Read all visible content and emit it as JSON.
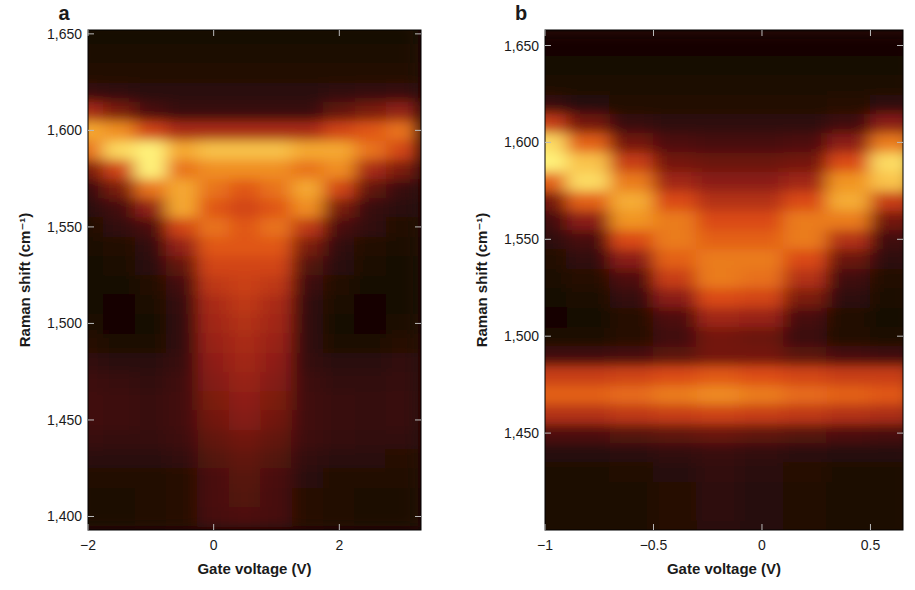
{
  "chart_data": [
    {
      "type": "heatmap",
      "panel_label": "a",
      "x_label": "Gate voltage (V)",
      "y_label": "Raman shift (cm⁻¹)",
      "xlim": [
        -2,
        3.3
      ],
      "ylim": [
        1393,
        1652
      ],
      "xticks": [
        {
          "value": -2,
          "label": "−2"
        },
        0,
        2
      ],
      "yticks": [
        {
          "value": 1400,
          "label": "1,400"
        },
        {
          "value": 1450,
          "label": "1,450"
        },
        {
          "value": 1500,
          "label": "1,500"
        },
        {
          "value": 1550,
          "label": "1,550"
        },
        {
          "value": 1600,
          "label": "1,600"
        },
        {
          "value": 1650,
          "label": "1,650"
        }
      ],
      "x": [
        -2,
        -1.5,
        -1,
        -0.5,
        0,
        0.5,
        1,
        1.5,
        2,
        2.5,
        3
      ],
      "y": [
        1400,
        1410,
        1420,
        1430,
        1440,
        1450,
        1460,
        1470,
        1480,
        1490,
        1500,
        1510,
        1520,
        1530,
        1540,
        1550,
        1560,
        1570,
        1580,
        1590,
        1600,
        1610,
        1620,
        1630,
        1640,
        1650
      ],
      "z": [
        [
          0.6,
          0.6,
          0.7,
          0.9,
          1.9,
          2.1,
          1.9,
          0.9,
          0.7,
          0.6,
          0.6
        ],
        [
          0.6,
          0.6,
          0.7,
          0.9,
          2,
          2.2,
          1.9,
          0.9,
          0.7,
          0.6,
          0.6
        ],
        [
          0.7,
          0.7,
          0.7,
          0.9,
          2,
          2.3,
          2,
          1,
          0.7,
          0.7,
          0.7
        ],
        [
          1,
          1,
          1,
          1.2,
          2.2,
          2.5,
          2.2,
          1.2,
          1,
          1,
          0.9
        ],
        [
          1.5,
          1.4,
          1.4,
          1.6,
          2.5,
          2.8,
          2.5,
          1.6,
          1.4,
          1.3,
          1.3
        ],
        [
          1.7,
          1.6,
          1.5,
          1.8,
          2.8,
          3.2,
          2.8,
          1.7,
          1.5,
          1.4,
          1.5
        ],
        [
          1.7,
          1.6,
          1.5,
          1.8,
          3,
          3.4,
          3,
          1.7,
          1.5,
          1.4,
          1.5
        ],
        [
          1.6,
          1.5,
          1.3,
          1.7,
          3.2,
          3.6,
          3.2,
          1.6,
          1.3,
          1.3,
          1.4
        ],
        [
          1.3,
          1.1,
          1,
          1.5,
          3.4,
          3.8,
          3.4,
          1.4,
          1,
          1,
          1.2
        ],
        [
          0.9,
          0.6,
          0.6,
          1.3,
          3.6,
          4,
          3.6,
          1.2,
          0.6,
          0.6,
          0.9
        ],
        [
          0.6,
          0.4,
          0.5,
          1.3,
          3.8,
          4.2,
          3.8,
          1.2,
          0.5,
          0.4,
          0.6
        ],
        [
          0.5,
          0.4,
          0.6,
          1.4,
          4,
          4.5,
          4,
          1.3,
          0.6,
          0.4,
          0.5
        ],
        [
          0.5,
          0.5,
          0.8,
          1.8,
          4.5,
          4.8,
          4.5,
          1.6,
          0.8,
          0.5,
          0.5
        ],
        [
          0.5,
          0.6,
          1,
          2.5,
          5,
          5,
          5,
          2.2,
          1,
          0.6,
          0.5
        ],
        [
          0.6,
          0.8,
          1.3,
          3.5,
          5.5,
          5.5,
          5.5,
          3,
          1.3,
          0.8,
          0.6
        ],
        [
          0.8,
          1.2,
          2,
          5,
          6,
          5.5,
          6,
          4.5,
          2,
          1.2,
          0.8
        ],
        [
          1,
          1.8,
          3.5,
          7,
          5.5,
          5,
          5.5,
          6.5,
          3,
          1.5,
          1
        ],
        [
          1.5,
          3,
          6,
          7,
          6,
          5.5,
          6,
          7,
          5,
          2.5,
          1.5
        ],
        [
          3,
          5,
          8.5,
          6,
          6.5,
          6.5,
          6.5,
          6,
          6.5,
          4,
          3
        ],
        [
          6,
          8,
          8.5,
          7,
          7.5,
          7.5,
          7.5,
          7,
          7,
          6,
          5
        ],
        [
          7,
          6.5,
          5,
          4,
          4,
          4,
          4,
          4,
          5,
          5.5,
          6
        ],
        [
          4,
          3,
          2,
          1.5,
          1.5,
          1.5,
          1.5,
          1.5,
          2.5,
          3,
          3.5
        ],
        [
          1.5,
          1.2,
          1,
          1,
          1,
          1,
          1,
          1,
          1.2,
          1.4,
          1.5
        ],
        [
          0.8,
          0.8,
          0.8,
          0.8,
          0.8,
          0.8,
          0.8,
          0.8,
          0.8,
          0.8,
          0.8
        ],
        [
          0.6,
          0.6,
          0.6,
          0.6,
          0.6,
          0.6,
          0.6,
          0.6,
          0.6,
          0.6,
          0.6
        ],
        [
          0.5,
          0.5,
          0.5,
          0.5,
          0.5,
          0.5,
          0.5,
          0.5,
          0.5,
          0.5,
          0.5
        ]
      ]
    },
    {
      "type": "heatmap",
      "panel_label": "b",
      "x_label": "Gate voltage (V)",
      "y_label": "Raman shift (cm⁻¹)",
      "xlim": [
        -1,
        0.65
      ],
      "ylim": [
        1400,
        1658
      ],
      "xticks": [
        {
          "value": -1,
          "label": "−1"
        },
        {
          "value": -0.5,
          "label": "−0.5"
        },
        0,
        0.5
      ],
      "yticks": [
        {
          "value": 1450,
          "label": "1,450"
        },
        {
          "value": 1500,
          "label": "1,500"
        },
        {
          "value": 1550,
          "label": "1,550"
        },
        {
          "value": 1600,
          "label": "1,600"
        },
        {
          "value": 1650,
          "label": "1,650"
        }
      ],
      "x": [
        -1,
        -0.8,
        -0.6,
        -0.4,
        -0.2,
        0,
        0.2,
        0.4,
        0.6
      ],
      "y": [
        1400,
        1410,
        1420,
        1430,
        1440,
        1450,
        1460,
        1470,
        1480,
        1490,
        1500,
        1510,
        1520,
        1530,
        1540,
        1550,
        1560,
        1570,
        1580,
        1590,
        1600,
        1610,
        1620,
        1630,
        1640,
        1650
      ],
      "z": [
        [
          0.6,
          0.6,
          0.7,
          0.9,
          1.1,
          1,
          0.8,
          0.6,
          0.6
        ],
        [
          0.6,
          0.6,
          0.7,
          0.9,
          1.2,
          1,
          0.8,
          0.6,
          0.6
        ],
        [
          0.6,
          0.6,
          0.7,
          0.9,
          1.2,
          1,
          0.8,
          0.6,
          0.6
        ],
        [
          0.7,
          0.7,
          0.8,
          1,
          1.3,
          1.1,
          0.9,
          0.7,
          0.7
        ],
        [
          1,
          1,
          1.1,
          1.3,
          1.5,
          1.3,
          1.1,
          1,
          1
        ],
        [
          2.2,
          2.2,
          2.4,
          2.6,
          2.8,
          2.6,
          2.4,
          2.2,
          2
        ],
        [
          4.5,
          4.5,
          4.8,
          5,
          5.2,
          5,
          4.8,
          4.5,
          4.3
        ],
        [
          6,
          6,
          6.2,
          6.5,
          6.8,
          6.5,
          6.2,
          6,
          5.8
        ],
        [
          5,
          5,
          5.2,
          5.5,
          5.8,
          5.6,
          5.3,
          5,
          5
        ],
        [
          1.8,
          1.8,
          2,
          2.5,
          3,
          3,
          2.5,
          2,
          1.8
        ],
        [
          0.6,
          0.6,
          0.9,
          1.8,
          3,
          2.8,
          1.6,
          0.8,
          0.6
        ],
        [
          0.4,
          0.5,
          0.9,
          2.2,
          4,
          3.8,
          2,
          0.8,
          0.5
        ],
        [
          0.5,
          0.6,
          1.4,
          3.5,
          5.5,
          5.3,
          3.2,
          1.2,
          0.6
        ],
        [
          0.6,
          0.9,
          2.2,
          5,
          6.5,
          6.3,
          4.5,
          1.8,
          0.8
        ],
        [
          0.8,
          1.3,
          3.5,
          6,
          6.5,
          6.5,
          5.5,
          2.8,
          1.2
        ],
        [
          1.2,
          2,
          5.5,
          6.5,
          6,
          6,
          6.5,
          4.5,
          1.8
        ],
        [
          1.8,
          3.5,
          7,
          6.5,
          5.5,
          5.5,
          6.5,
          6.5,
          3
        ],
        [
          3,
          6,
          7.5,
          5.5,
          4.5,
          4.5,
          5.5,
          7.5,
          5
        ],
        [
          6,
          8.5,
          6.5,
          4,
          3.5,
          3.5,
          4,
          7,
          8
        ],
        [
          9,
          8,
          5,
          3,
          2.8,
          2.8,
          3,
          5.5,
          8.5
        ],
        [
          8.5,
          6,
          3,
          2.2,
          2,
          2,
          2.2,
          3.5,
          6.5
        ],
        [
          5,
          3,
          1.5,
          1.2,
          1.2,
          1.2,
          1.2,
          1.8,
          3.5
        ],
        [
          1.5,
          1,
          0.8,
          0.8,
          0.8,
          0.8,
          0.8,
          0.9,
          1.2
        ],
        [
          0.7,
          0.6,
          0.6,
          0.6,
          0.6,
          0.6,
          0.6,
          0.6,
          0.6
        ],
        [
          0.5,
          0.5,
          0.5,
          0.5,
          0.5,
          0.5,
          0.5,
          0.5,
          0.5
        ],
        [
          0.4,
          0.4,
          0.4,
          0.4,
          0.4,
          0.4,
          0.4,
          0.4,
          0.4
        ]
      ]
    }
  ]
}
